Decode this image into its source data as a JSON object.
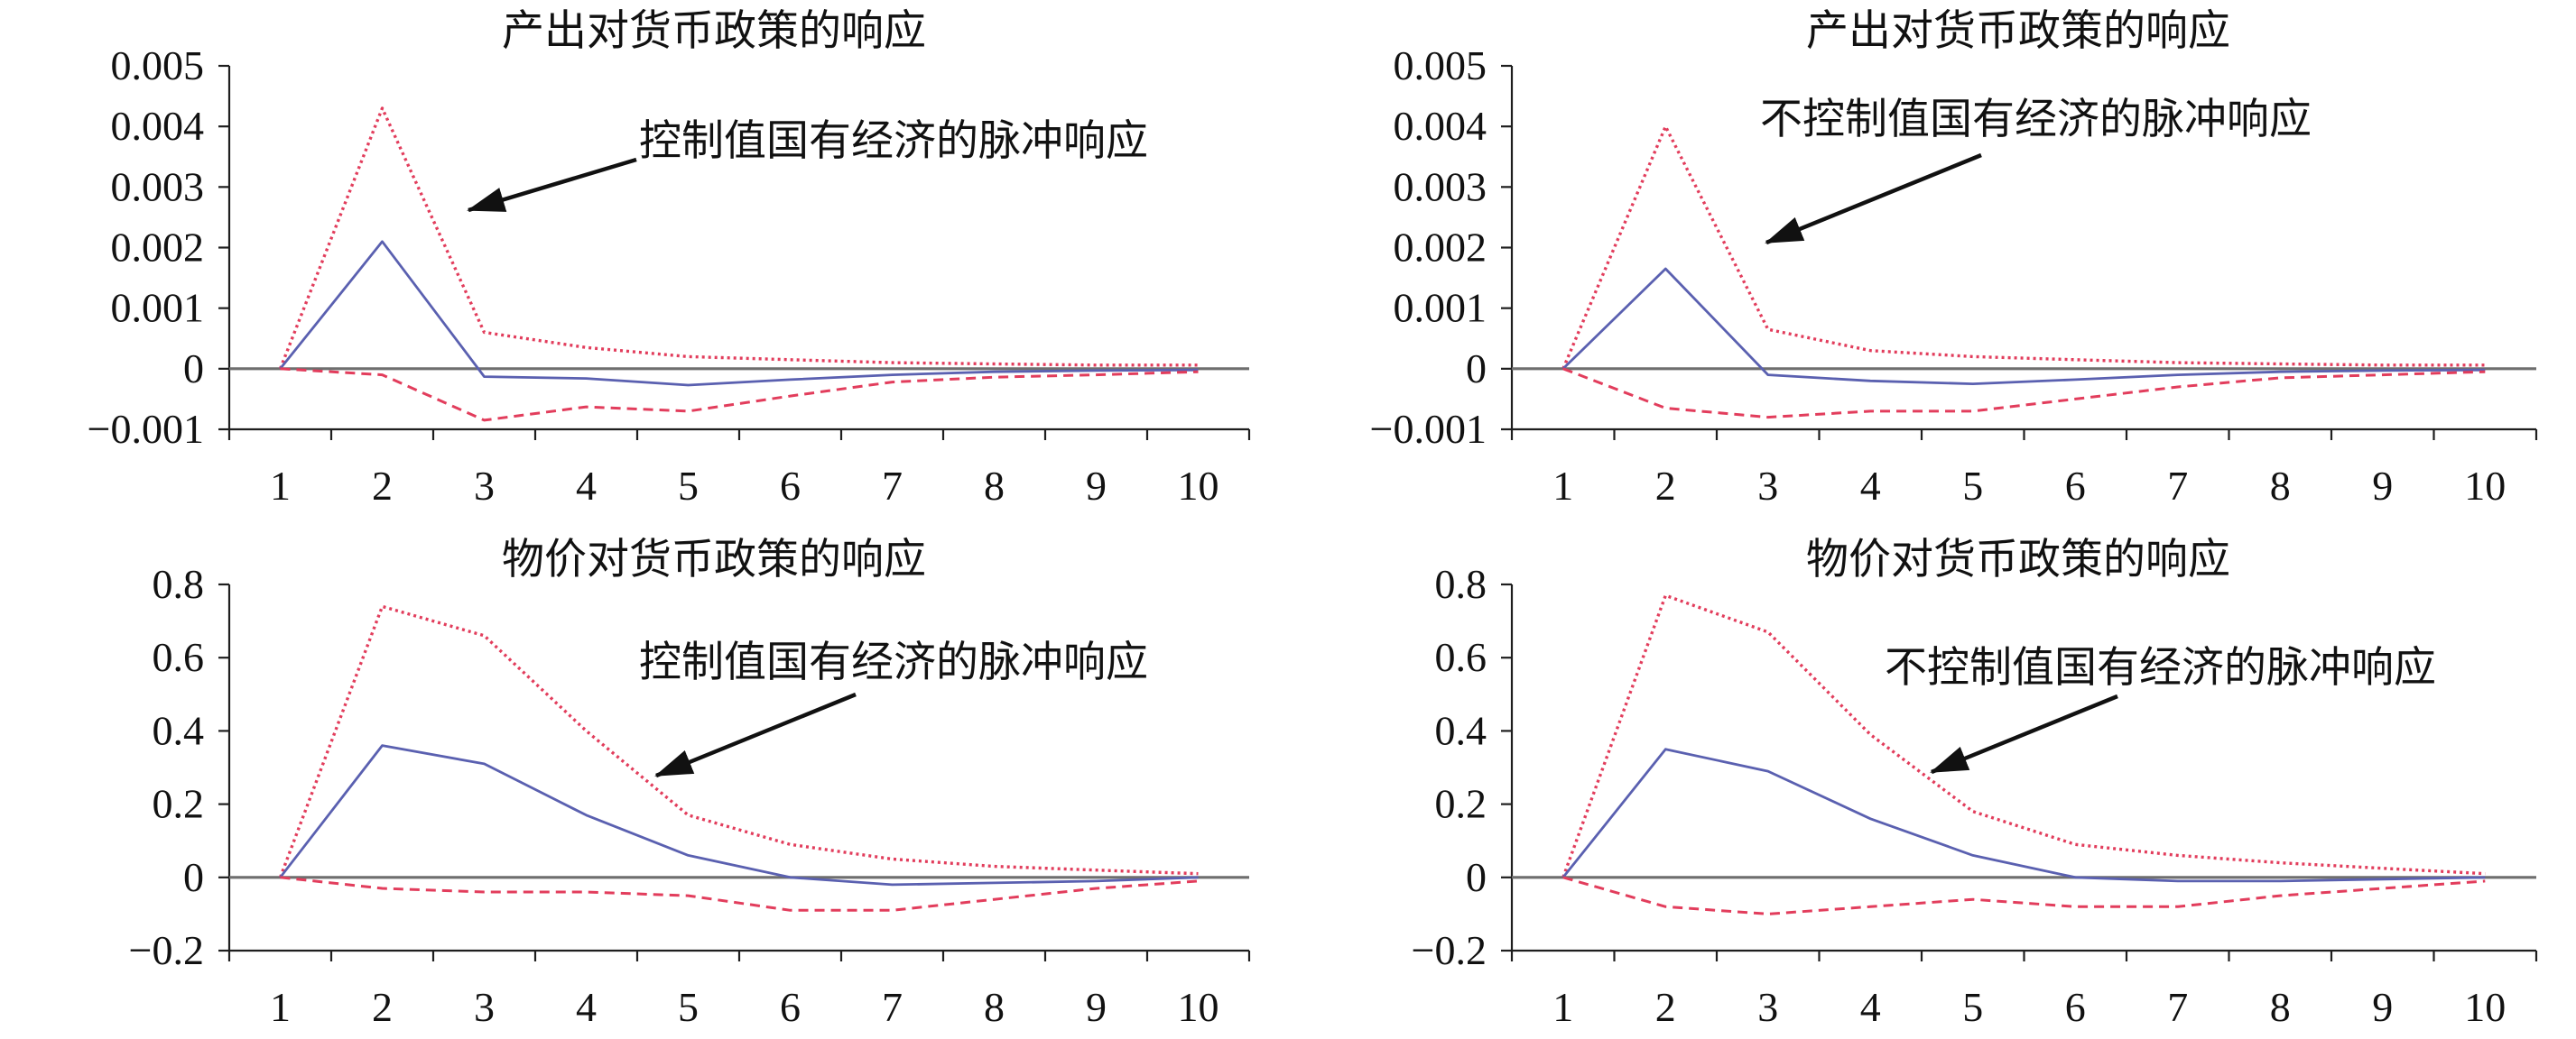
{
  "chart_data": [
    {
      "type": "line",
      "title": "产出对货币政策的响应",
      "categories": [
        "1",
        "2",
        "3",
        "4",
        "5",
        "6",
        "7",
        "8",
        "9",
        "10"
      ],
      "yticks": [
        0.005,
        0.004,
        0.003,
        0.002,
        0.001,
        0,
        -0.001
      ],
      "ytick_labels": [
        "0.005",
        "0.004",
        "0.003",
        "0.002",
        "0.001",
        "0",
        "−0.001"
      ],
      "ylim": [
        -0.001,
        0.005
      ],
      "annotation": "控制值国有经济的脉冲响应",
      "series": [
        {
          "color": "#e23d5c",
          "values": [
            0,
            0.0043,
            0.0006,
            0.00035,
            0.0002,
            0.00015,
            0.0001,
            8e-05,
            6e-05,
            6e-05
          ]
        },
        {
          "color": "#5a60b0",
          "values": [
            0,
            0.0021,
            -0.00013,
            -0.00016,
            -0.00027,
            -0.00018,
            -0.0001,
            -5e-05,
            -3e-05,
            -2e-05
          ]
        },
        {
          "color": "#e23d5c",
          "values": [
            0,
            -0.0001,
            -0.00085,
            -0.00063,
            -0.0007,
            -0.00045,
            -0.00022,
            -0.00014,
            -0.0001,
            -5e-05
          ]
        }
      ]
    },
    {
      "type": "line",
      "title": "产出对货币政策的响应",
      "categories": [
        "1",
        "2",
        "3",
        "4",
        "5",
        "6",
        "7",
        "8",
        "9",
        "10"
      ],
      "yticks": [
        0.005,
        0.004,
        0.003,
        0.002,
        0.001,
        0,
        -0.001
      ],
      "ytick_labels": [
        "0.005",
        "0.004",
        "0.003",
        "0.002",
        "0.001",
        "0",
        "−0.001"
      ],
      "ylim": [
        -0.001,
        0.005
      ],
      "annotation": "不控制值国有经济的脉冲响应",
      "series": [
        {
          "color": "#e23d5c",
          "values": [
            0,
            0.004,
            0.00065,
            0.0003,
            0.0002,
            0.00015,
            0.0001,
            8e-05,
            6e-05,
            6e-05
          ]
        },
        {
          "color": "#5a60b0",
          "values": [
            0,
            0.00165,
            -0.0001,
            -0.0002,
            -0.00025,
            -0.00018,
            -0.0001,
            -5e-05,
            -3e-05,
            -2e-05
          ]
        },
        {
          "color": "#e23d5c",
          "values": [
            0,
            -0.00065,
            -0.0008,
            -0.0007,
            -0.0007,
            -0.0005,
            -0.0003,
            -0.00015,
            -0.0001,
            -5e-05
          ]
        }
      ]
    },
    {
      "type": "line",
      "title": "物价对货币政策的响应",
      "categories": [
        "1",
        "2",
        "3",
        "4",
        "5",
        "6",
        "7",
        "8",
        "9",
        "10"
      ],
      "yticks": [
        0.8,
        0.6,
        0.4,
        0.2,
        0,
        -0.2
      ],
      "ytick_labels": [
        "0.8",
        "0.6",
        "0.4",
        "0.2",
        "0",
        "−0.2"
      ],
      "ylim": [
        -0.2,
        0.8
      ],
      "annotation": "控制值国有经济的脉冲响应",
      "series": [
        {
          "color": "#e23d5c",
          "values": [
            0,
            0.74,
            0.66,
            0.4,
            0.17,
            0.09,
            0.05,
            0.03,
            0.02,
            0.01
          ]
        },
        {
          "color": "#5a60b0",
          "values": [
            0,
            0.36,
            0.31,
            0.17,
            0.06,
            0.0,
            -0.02,
            -0.015,
            -0.01,
            0
          ]
        },
        {
          "color": "#e23d5c",
          "values": [
            0,
            -0.03,
            -0.04,
            -0.04,
            -0.05,
            -0.09,
            -0.09,
            -0.06,
            -0.03,
            -0.01
          ]
        }
      ]
    },
    {
      "type": "line",
      "title": "物价对货币政策的响应",
      "categories": [
        "1",
        "2",
        "3",
        "4",
        "5",
        "6",
        "7",
        "8",
        "9",
        "10"
      ],
      "yticks": [
        0.8,
        0.6,
        0.4,
        0.2,
        0,
        -0.2
      ],
      "ytick_labels": [
        "0.8",
        "0.6",
        "0.4",
        "0.2",
        "0",
        "−0.2"
      ],
      "ylim": [
        -0.2,
        0.8
      ],
      "annotation": "不控制值国有经济的脉冲响应",
      "series": [
        {
          "color": "#e23d5c",
          "values": [
            0,
            0.77,
            0.67,
            0.39,
            0.18,
            0.09,
            0.06,
            0.04,
            0.025,
            0.01
          ]
        },
        {
          "color": "#5a60b0",
          "values": [
            0,
            0.35,
            0.29,
            0.16,
            0.06,
            0.0,
            -0.01,
            -0.01,
            -0.005,
            0
          ]
        },
        {
          "color": "#e23d5c",
          "values": [
            0,
            -0.08,
            -0.1,
            -0.08,
            -0.06,
            -0.08,
            -0.08,
            -0.05,
            -0.03,
            -0.01
          ]
        }
      ]
    }
  ]
}
